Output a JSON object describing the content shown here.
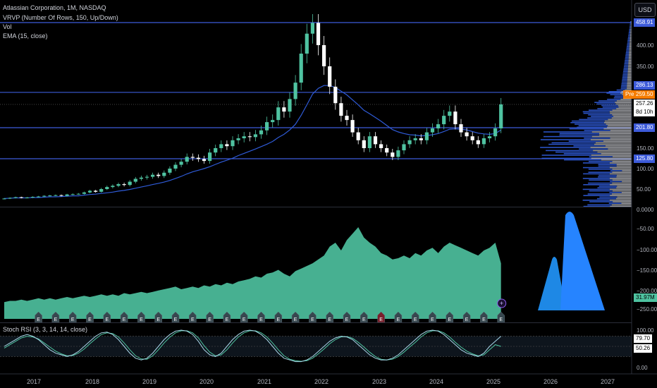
{
  "legend": {
    "symbol_line": "Atlassian Corporation, 1M, NASDAQ",
    "vrvp": "VRVP (Number Of Rows, 150, Up/Down)",
    "vol": "Vol",
    "ema": "EMA (15, close)",
    "stoch": "Stoch RSI (3, 3, 14, 14, close)"
  },
  "currency_button": "USD",
  "colors": {
    "background": "#000000",
    "up": "#4fc3a1",
    "down": "#ffffff",
    "ema_line": "#2f5bd8",
    "level_line": "#3d5bd9",
    "volume_fill": "#4fc3a1",
    "stoch_k": "#a8d8ea",
    "stoch_d": "#4fc3a1",
    "earnings_badge": "#37474f",
    "earnings_badge_neg": "#7a1f2b",
    "logo_blue": "#1e88e5",
    "pre_tag": "#f57c00"
  },
  "price_axis": {
    "ticks": [
      "400.00",
      "350.00",
      "150.00",
      "100.00",
      "50.00"
    ],
    "labels": {
      "top_level": "458.91",
      "upper_level": "286.13",
      "pre_label": "Pre",
      "pre_price": "259.50",
      "last_price": "257.26",
      "countdown": "8d 10h",
      "mid_level": "201.80",
      "lower_level": "125.80"
    }
  },
  "volume_axis": {
    "ticks": [
      "0.0000",
      "−50.00",
      "−100.00",
      "−150.00",
      "−200.00",
      "−250.00"
    ],
    "current": "31.97M"
  },
  "stoch_axis": {
    "ticks": [
      "100.00",
      "50.00",
      "0.00"
    ],
    "k_value": "79.70",
    "d_value": "50.26"
  },
  "time_axis": {
    "labels": [
      "2017",
      "2018",
      "2019",
      "2020",
      "2021",
      "2022",
      "2023",
      "2024",
      "2025",
      "2026",
      "2027"
    ]
  },
  "earnings": {
    "badge_letter": "E",
    "future_icon": "+"
  },
  "chart_data": {
    "type": "candlestick",
    "interval": "1M",
    "x_start": "2016-01",
    "horizontal_levels": [
      458.91,
      286.13,
      201.8,
      125.8
    ],
    "close": [
      22,
      24,
      26,
      24,
      25,
      27,
      28,
      30,
      31,
      32,
      30,
      34,
      35,
      36,
      40,
      45,
      42,
      50,
      55,
      58,
      62,
      60,
      68,
      75,
      78,
      80,
      85,
      82,
      90,
      100,
      110,
      118,
      130,
      128,
      125,
      120,
      140,
      150,
      160,
      155,
      170,
      175,
      180,
      178,
      185,
      195,
      215,
      220,
      250,
      240,
      270,
      310,
      380,
      430,
      458,
      400,
      350,
      300,
      260,
      230,
      220,
      190,
      170,
      150,
      180,
      160,
      150,
      140,
      130,
      145,
      160,
      170,
      175,
      170,
      190,
      200,
      210,
      230,
      240,
      210,
      190,
      180,
      170,
      160,
      175,
      180,
      200,
      257
    ],
    "volume_millions": [
      2,
      3,
      3,
      4,
      3,
      4,
      5,
      4,
      5,
      4,
      5,
      6,
      5,
      6,
      7,
      6,
      7,
      8,
      7,
      8,
      7,
      9,
      8,
      9,
      10,
      9,
      10,
      11,
      12,
      13,
      14,
      12,
      13,
      14,
      13,
      15,
      14,
      16,
      15,
      17,
      16,
      18,
      19,
      20,
      22,
      21,
      24,
      25,
      27,
      24,
      22,
      26,
      28,
      30,
      32,
      35,
      38,
      45,
      48,
      42,
      50,
      55,
      60,
      52,
      48,
      45,
      40,
      38,
      35,
      36,
      38,
      36,
      40,
      38,
      42,
      44,
      40,
      45,
      48,
      46,
      44,
      42,
      40,
      38,
      42,
      44,
      48,
      32
    ],
    "ema15": [
      22,
      23,
      24,
      24,
      24,
      25,
      25,
      26,
      27,
      27,
      28,
      29,
      30,
      30,
      32,
      34,
      35,
      37,
      39,
      41,
      44,
      46,
      49,
      52,
      55,
      58,
      61,
      64,
      67,
      71,
      76,
      81,
      87,
      92,
      96,
      100,
      105,
      111,
      117,
      122,
      127,
      133,
      138,
      143,
      148,
      154,
      160,
      167,
      177,
      185,
      196,
      210,
      231,
      256,
      282,
      296,
      303,
      303,
      298,
      289,
      280,
      268,
      256,
      243,
      235,
      226,
      217,
      207,
      197,
      191,
      187,
      184,
      183,
      181,
      182,
      184,
      187,
      192,
      198,
      199,
      198,
      196,
      192,
      188,
      186,
      185,
      187,
      196
    ],
    "stoch_k": [
      50,
      60,
      70,
      80,
      85,
      80,
      70,
      55,
      40,
      30,
      25,
      20,
      25,
      35,
      50,
      65,
      80,
      90,
      92,
      85,
      70,
      50,
      30,
      15,
      10,
      15,
      30,
      50,
      70,
      85,
      95,
      98,
      95,
      85,
      65,
      40,
      25,
      20,
      30,
      50,
      70,
      85,
      95,
      98,
      95,
      85,
      70,
      50,
      30,
      15,
      10,
      5,
      5,
      10,
      20,
      35,
      50,
      65,
      75,
      80,
      78,
      70,
      55,
      40,
      25,
      15,
      10,
      10,
      15,
      25,
      40,
      55,
      70,
      85,
      95,
      98,
      95,
      85,
      70,
      55,
      40,
      30,
      25,
      20,
      30,
      50,
      65,
      80
    ],
    "stoch_d": [
      45,
      55,
      65,
      75,
      80,
      78,
      72,
      60,
      48,
      36,
      28,
      22,
      23,
      30,
      42,
      58,
      72,
      85,
      90,
      88,
      78,
      60,
      40,
      22,
      13,
      12,
      22,
      40,
      60,
      77,
      90,
      96,
      96,
      90,
      75,
      52,
      33,
      22,
      25,
      40,
      60,
      78,
      90,
      96,
      96,
      90,
      78,
      60,
      40,
      22,
      12,
      8,
      6,
      8,
      15,
      28,
      42,
      58,
      70,
      78,
      79,
      74,
      62,
      48,
      33,
      20,
      12,
      10,
      12,
      20,
      33,
      48,
      62,
      78,
      90,
      96,
      96,
      90,
      78,
      62,
      48,
      36,
      28,
      22,
      25,
      40,
      55,
      50
    ],
    "axes": {
      "price_range": [
        0,
        480
      ],
      "volume_display_range": [
        -260,
        0
      ],
      "stoch_range": [
        0,
        100
      ]
    }
  }
}
